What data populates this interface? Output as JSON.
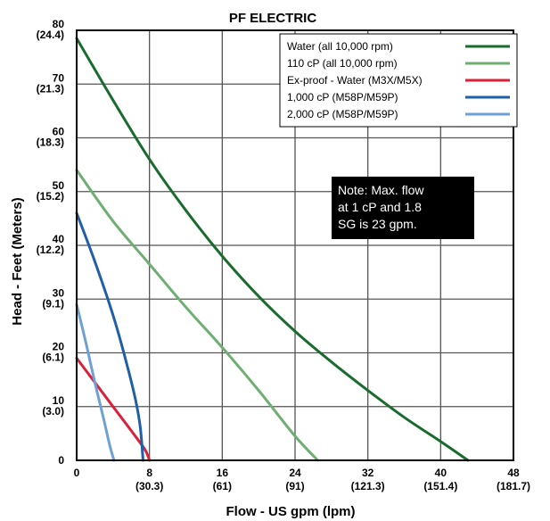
{
  "chart_data": {
    "type": "line",
    "title": "PF ELECTRIC",
    "xlabel": "Flow - US gpm (lpm)",
    "ylabel": "Head - Feet (Meters)",
    "xlim": [
      0,
      48
    ],
    "ylim": [
      0,
      80
    ],
    "grid": true,
    "legend_position": "top-right",
    "x_ticks": [
      {
        "value": 0,
        "label": "0",
        "sub": ""
      },
      {
        "value": 8,
        "label": "8",
        "sub": "(30.3)"
      },
      {
        "value": 16,
        "label": "16",
        "sub": "(61)"
      },
      {
        "value": 24,
        "label": "24",
        "sub": "(91)"
      },
      {
        "value": 32,
        "label": "32",
        "sub": "(121.3)"
      },
      {
        "value": 40,
        "label": "40",
        "sub": "(151.4)"
      },
      {
        "value": 48,
        "label": "48",
        "sub": "(181.7)"
      }
    ],
    "y_ticks": [
      {
        "value": 0,
        "label": "0",
        "sub": ""
      },
      {
        "value": 10,
        "label": "10",
        "sub": "(3.0)"
      },
      {
        "value": 20,
        "label": "20",
        "sub": "(6.1)"
      },
      {
        "value": 30,
        "label": "30",
        "sub": "(9.1)"
      },
      {
        "value": 40,
        "label": "40",
        "sub": "(12.2)"
      },
      {
        "value": 50,
        "label": "50",
        "sub": "(15.2)"
      },
      {
        "value": 60,
        "label": "60",
        "sub": "(18.3)"
      },
      {
        "value": 70,
        "label": "70",
        "sub": "(21.3)"
      },
      {
        "value": 80,
        "label": "80",
        "sub": "(24.4)"
      }
    ],
    "series": [
      {
        "name": "Water (all 10,000 rpm)",
        "color": "#1a6b2e",
        "points": [
          [
            0,
            78.5
          ],
          [
            4,
            67
          ],
          [
            8,
            56
          ],
          [
            12,
            46.5
          ],
          [
            16,
            38
          ],
          [
            20,
            30.5
          ],
          [
            24,
            24
          ],
          [
            28,
            18.3
          ],
          [
            32,
            13
          ],
          [
            36,
            8
          ],
          [
            40,
            3.5
          ],
          [
            43,
            0
          ]
        ]
      },
      {
        "name": "110 cP (all 10,000 rpm)",
        "color": "#6fae72",
        "points": [
          [
            0,
            54
          ],
          [
            4,
            44.5
          ],
          [
            8,
            36.5
          ],
          [
            12,
            28.5
          ],
          [
            16,
            21
          ],
          [
            20,
            13
          ],
          [
            24,
            4.5
          ],
          [
            26.5,
            0
          ]
        ]
      },
      {
        "name": "Ex-proof - Water (M3X/M5X)",
        "color": "#d8213a",
        "points": [
          [
            0,
            19
          ],
          [
            2,
            14.5
          ],
          [
            4,
            10
          ],
          [
            6,
            5.5
          ],
          [
            7.5,
            2
          ],
          [
            8,
            0
          ]
        ]
      },
      {
        "name": "1,000 cP (M58P/M59P)",
        "color": "#1f5fa6",
        "points": [
          [
            0,
            46
          ],
          [
            2,
            37
          ],
          [
            4,
            27
          ],
          [
            5.5,
            18
          ],
          [
            6.5,
            11
          ],
          [
            7,
            6
          ],
          [
            7.3,
            0
          ]
        ]
      },
      {
        "name": "2,000 cP (M58P/M59P)",
        "color": "#6e9fd6",
        "points": [
          [
            0,
            29
          ],
          [
            1,
            22
          ],
          [
            2,
            14.5
          ],
          [
            3,
            7.5
          ],
          [
            3.6,
            3
          ],
          [
            4.1,
            0
          ]
        ]
      }
    ],
    "annotation": {
      "lines": [
        "Note: Max. flow",
        "at 1 cP and 1.8",
        "SG is 23 gpm."
      ],
      "background": "#000000",
      "color": "#ffffff"
    }
  }
}
